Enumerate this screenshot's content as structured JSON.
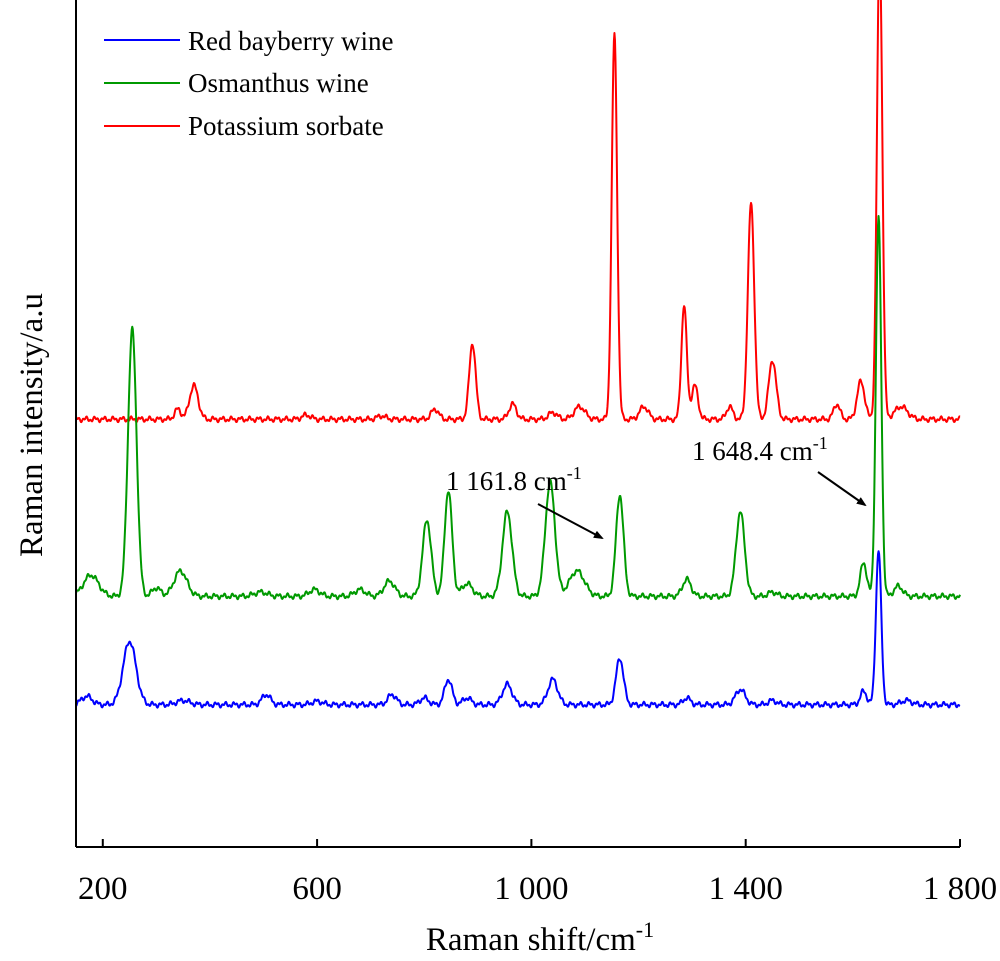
{
  "chart_data": {
    "type": "line",
    "xlabel": "Raman shift/cm",
    "xlabel_sup": "-1",
    "ylabel": "Raman intensity/a.u",
    "xlim": [
      150,
      1800
    ],
    "ylim": [
      0,
      1.0
    ],
    "xticks": [
      {
        "value": 200,
        "label": "200"
      },
      {
        "value": 600,
        "label": "600"
      },
      {
        "value": 1000,
        "label": "1 000"
      },
      {
        "value": 1400,
        "label": "1 400"
      },
      {
        "value": 1800,
        "label": "1 800"
      }
    ],
    "grid": false,
    "legend_position": "top-left",
    "series": [
      {
        "name": "Red bayberry wine",
        "color": "#0000ff",
        "baseline": 0.168,
        "peaks": [
          [
            170,
            0.01,
            10
          ],
          [
            250,
            0.075,
            12
          ],
          [
            350,
            0.005,
            12
          ],
          [
            505,
            0.012,
            8
          ],
          [
            600,
            0.004,
            10
          ],
          [
            740,
            0.012,
            8
          ],
          [
            800,
            0.008,
            8
          ],
          [
            845,
            0.03,
            7
          ],
          [
            880,
            0.008,
            8
          ],
          [
            955,
            0.024,
            9
          ],
          [
            1040,
            0.03,
            9
          ],
          [
            1165,
            0.055,
            7
          ],
          [
            1290,
            0.008,
            7
          ],
          [
            1390,
            0.018,
            9
          ],
          [
            1450,
            0.005,
            8
          ],
          [
            1620,
            0.016,
            6
          ],
          [
            1648,
            0.182,
            5
          ],
          [
            1700,
            0.005,
            10
          ]
        ]
      },
      {
        "name": "Osmanthus wine",
        "color": "#009900",
        "baseline": 0.296,
        "peaks": [
          [
            178,
            0.025,
            14
          ],
          [
            255,
            0.315,
            8
          ],
          [
            300,
            0.01,
            8
          ],
          [
            345,
            0.03,
            12
          ],
          [
            495,
            0.005,
            12
          ],
          [
            595,
            0.008,
            10
          ],
          [
            680,
            0.008,
            10
          ],
          [
            735,
            0.018,
            10
          ],
          [
            805,
            0.09,
            8
          ],
          [
            845,
            0.125,
            7
          ],
          [
            880,
            0.015,
            10
          ],
          [
            955,
            0.1,
            9
          ],
          [
            1035,
            0.135,
            9
          ],
          [
            1085,
            0.03,
            14
          ],
          [
            1165,
            0.12,
            7
          ],
          [
            1290,
            0.02,
            8
          ],
          [
            1390,
            0.1,
            8
          ],
          [
            1450,
            0.005,
            8
          ],
          [
            1620,
            0.04,
            6
          ],
          [
            1648,
            0.447,
            5
          ],
          [
            1685,
            0.012,
            8
          ]
        ]
      },
      {
        "name": "Potassium sorbate",
        "color": "#ff0000",
        "baseline": 0.505,
        "peaks": [
          [
            340,
            0.012,
            6
          ],
          [
            370,
            0.04,
            8
          ],
          [
            580,
            0.005,
            8
          ],
          [
            720,
            0.004,
            8
          ],
          [
            820,
            0.012,
            7
          ],
          [
            890,
            0.09,
            6
          ],
          [
            965,
            0.018,
            7
          ],
          [
            1040,
            0.008,
            8
          ],
          [
            1090,
            0.015,
            10
          ],
          [
            1155,
            0.455,
            5
          ],
          [
            1210,
            0.015,
            8
          ],
          [
            1285,
            0.135,
            5
          ],
          [
            1305,
            0.04,
            6
          ],
          [
            1370,
            0.015,
            6
          ],
          [
            1410,
            0.255,
            6
          ],
          [
            1450,
            0.07,
            7
          ],
          [
            1570,
            0.018,
            6
          ],
          [
            1615,
            0.045,
            7
          ],
          [
            1650,
            0.56,
            5
          ],
          [
            1690,
            0.015,
            12
          ]
        ]
      }
    ],
    "annotations": [
      {
        "text": "1 161.8 cm",
        "sup": "-1",
        "target_x": 1161.8,
        "target_series": 1
      },
      {
        "text": "1 648.4 cm",
        "sup": "-1",
        "target_x": 1648.4,
        "target_series": 1
      }
    ]
  }
}
